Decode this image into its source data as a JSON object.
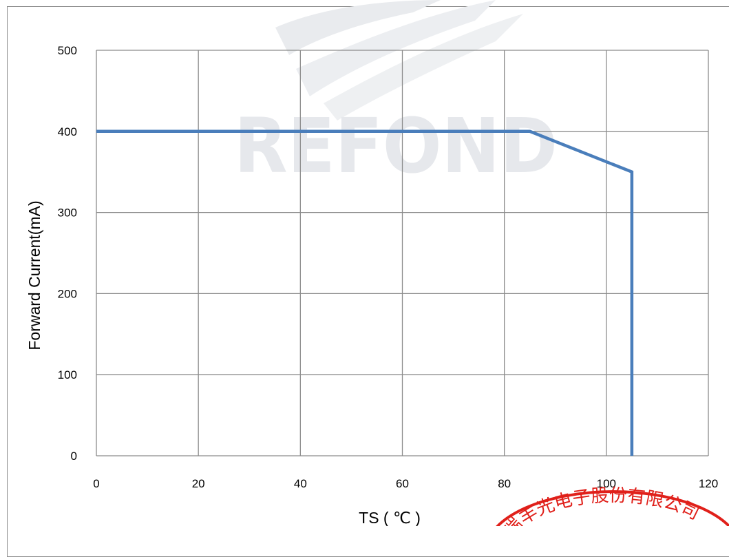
{
  "chart_data": {
    "type": "line",
    "title": "",
    "xlabel": "TS ( ℃ )",
    "ylabel": "Forward Current(mA)",
    "xlim": [
      0,
      120
    ],
    "ylim": [
      0,
      500
    ],
    "x_ticks": [
      0,
      20,
      40,
      60,
      80,
      100,
      120
    ],
    "y_ticks": [
      0,
      100,
      200,
      300,
      400,
      500
    ],
    "grid": true,
    "legend": "none",
    "series": [
      {
        "color": "#4a7ebb",
        "points": [
          {
            "x": 0,
            "y": 400
          },
          {
            "x": 85,
            "y": 400
          },
          {
            "x": 105,
            "y": 350
          },
          {
            "x": 105,
            "y": 0
          }
        ]
      }
    ]
  },
  "watermark": {
    "text": "REFOND",
    "color": "#e6e8ec"
  },
  "stamp": {
    "text": "瑞丰光电子股份有限公司",
    "color": "#e0201a"
  },
  "colors": {
    "grid": "#8c8c8c",
    "frame": "#8c8c8c"
  }
}
